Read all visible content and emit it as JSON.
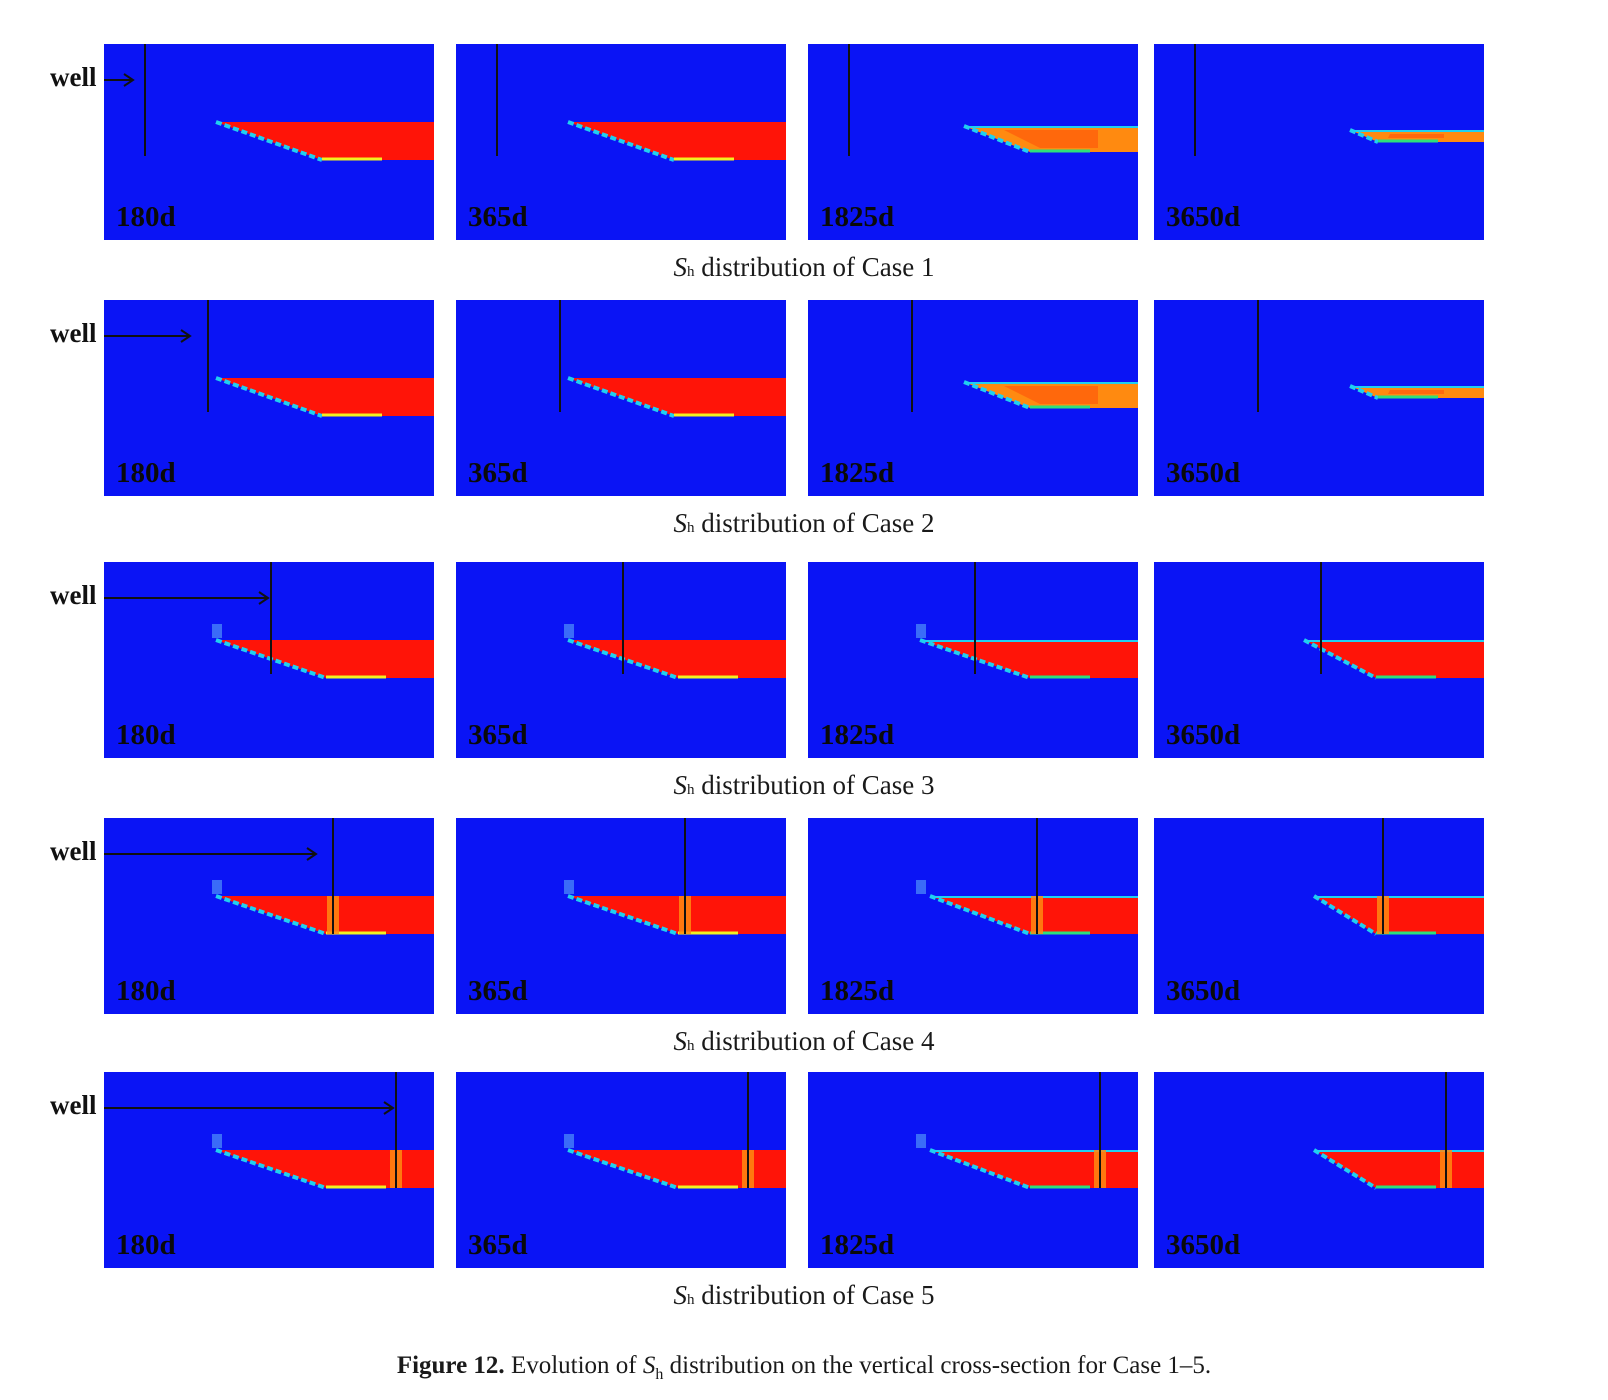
{
  "well_label": "well",
  "row_caption": {
    "symbol": "S",
    "subscript": "h",
    "text": "distribution of Case"
  },
  "times": [
    "180d",
    "365d",
    "1825d",
    "3650d"
  ],
  "cases": [
    {
      "case": "1",
      "well_x": 0.1
    },
    {
      "case": "2",
      "well_x": 0.3
    },
    {
      "case": "3",
      "well_x": 0.5
    },
    {
      "case": "4",
      "well_x": 0.7
    },
    {
      "case": "5",
      "well_x": 0.9
    }
  ],
  "figure_caption": {
    "label": "Figure 12.",
    "text_before": "Evolution of",
    "symbol": "S",
    "subscript": "h",
    "text_after": "distribution on the vertical cross-section for Case 1–5."
  },
  "colors": {
    "background_blue": "#0a14f5",
    "hydrate_red": "#ff1408",
    "orange": "#ff8a10",
    "yellow": "#f2f020",
    "green": "#2ee07a",
    "cyan": "#20d0f0",
    "well_line": "#111111"
  }
}
